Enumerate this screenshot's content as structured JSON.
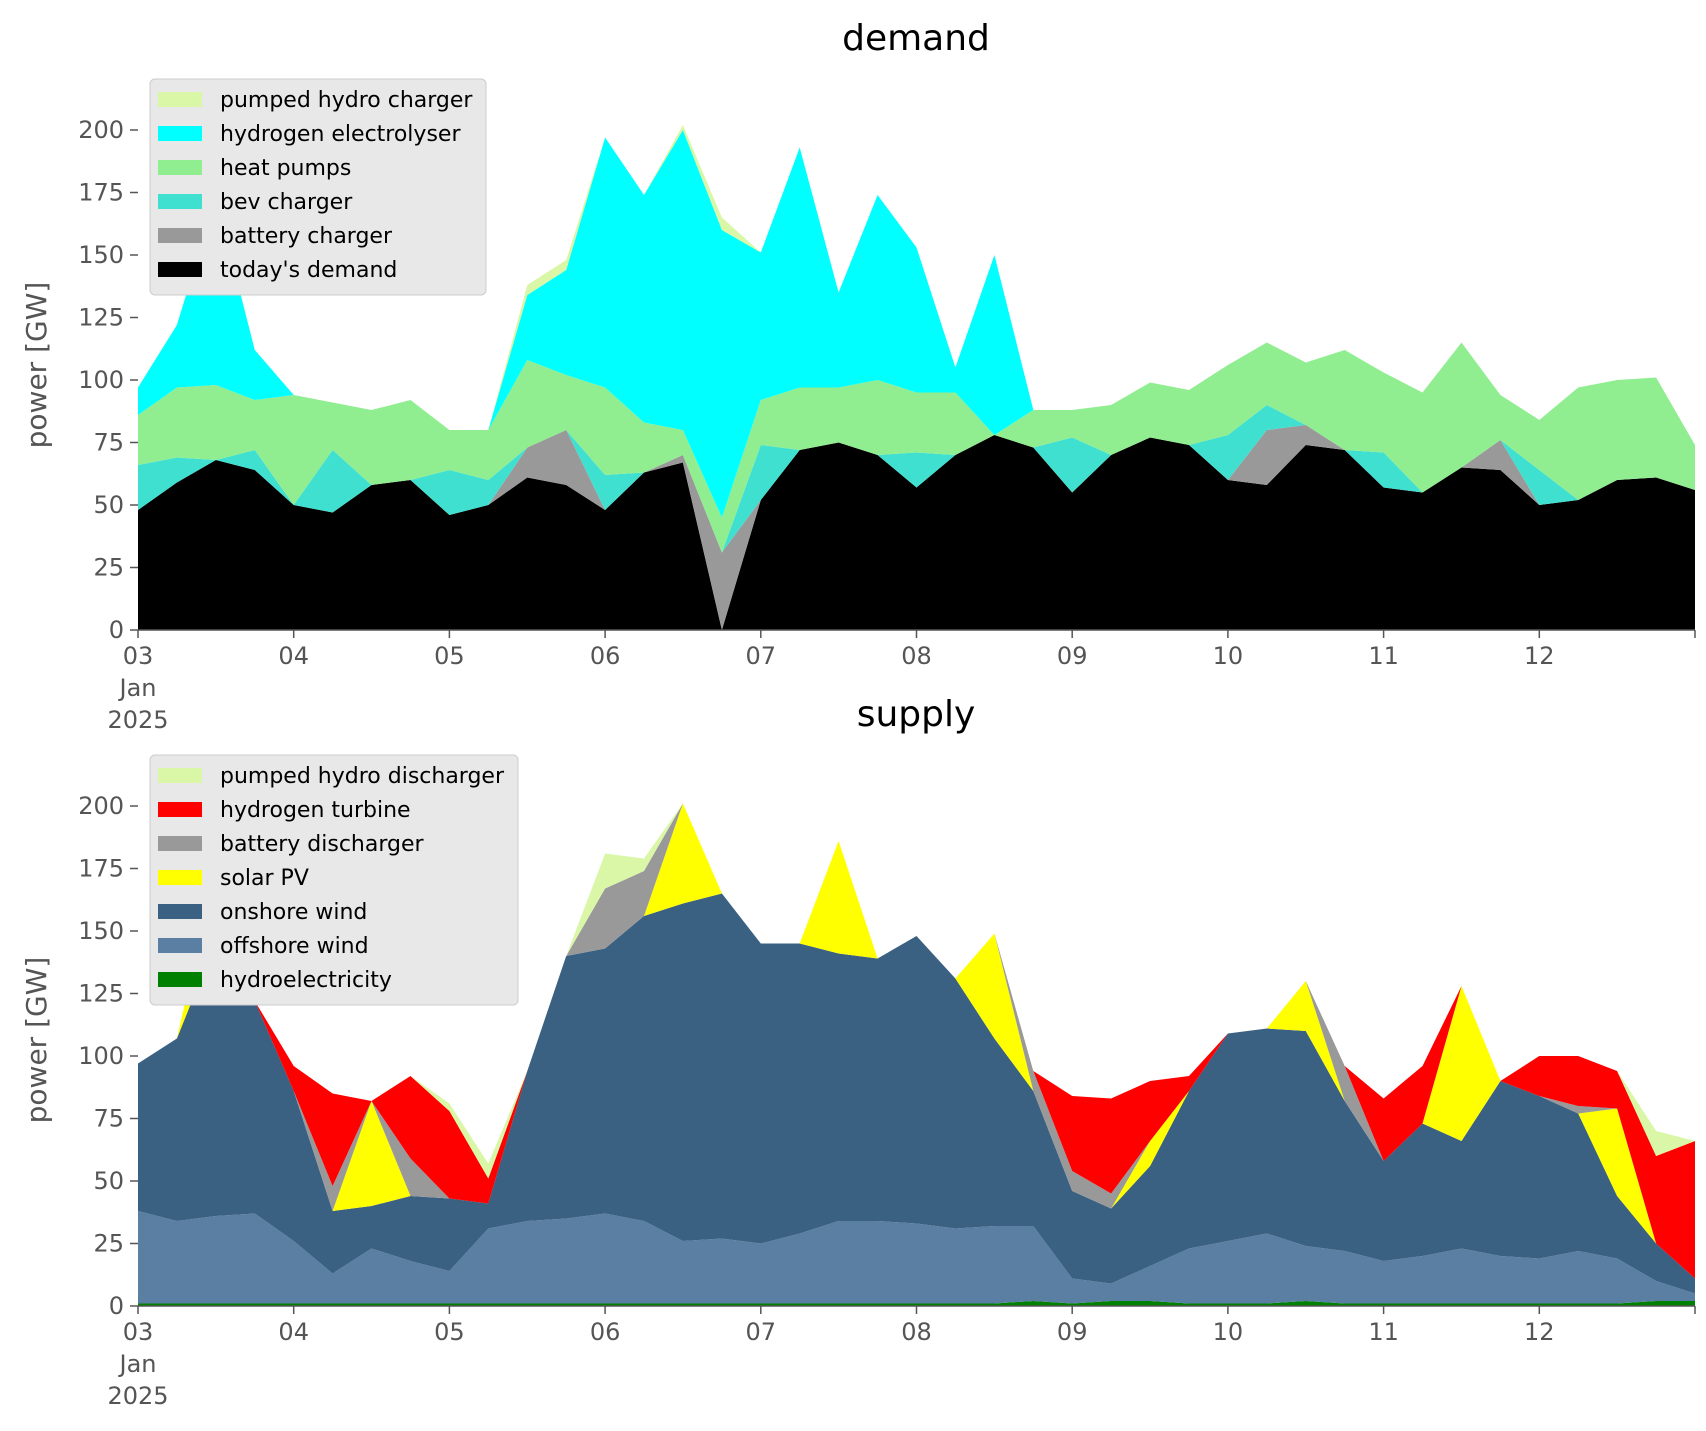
{
  "figure": {
    "x_ticks": [
      "03",
      "04",
      "05",
      "06",
      "07",
      "08",
      "09",
      "10",
      "11",
      "12"
    ],
    "x_extra_first": [
      "Jan",
      "2025"
    ]
  },
  "chart_data": [
    {
      "type": "area",
      "stacked": true,
      "title": "demand",
      "ylabel": "power [GW]",
      "xlabel": "",
      "ylim": [
        0,
        212
      ],
      "yticks": [
        0,
        25,
        50,
        75,
        100,
        125,
        150,
        175,
        200
      ],
      "x_range": [
        "2025-01-03",
        "2025-01-13"
      ],
      "grid": false,
      "legend_position": "top-left",
      "x": [
        "2025-01-03 00:00",
        "2025-01-03 06:00",
        "2025-01-03 12:00",
        "2025-01-03 18:00",
        "2025-01-04 00:00",
        "2025-01-04 06:00",
        "2025-01-04 12:00",
        "2025-01-04 18:00",
        "2025-01-05 00:00",
        "2025-01-05 06:00",
        "2025-01-05 12:00",
        "2025-01-05 18:00",
        "2025-01-06 00:00",
        "2025-01-06 06:00",
        "2025-01-06 12:00",
        "2025-01-06 18:00",
        "2025-01-07 00:00",
        "2025-01-07 06:00",
        "2025-01-07 12:00",
        "2025-01-07 18:00",
        "2025-01-08 00:00",
        "2025-01-08 06:00",
        "2025-01-08 12:00",
        "2025-01-08 18:00",
        "2025-01-09 00:00",
        "2025-01-09 06:00",
        "2025-01-09 12:00",
        "2025-01-09 18:00",
        "2025-01-10 00:00",
        "2025-01-10 06:00",
        "2025-01-10 12:00",
        "2025-01-10 18:00",
        "2025-01-11 00:00",
        "2025-01-11 06:00",
        "2025-01-11 12:00",
        "2025-01-11 18:00",
        "2025-01-12 00:00",
        "2025-01-12 06:00",
        "2025-01-12 12:00",
        "2025-01-12 18:00",
        "2025-01-13 00:00"
      ],
      "series": [
        {
          "name": "today's demand",
          "color": "#000000",
          "values": [
            48,
            59,
            68,
            64,
            50,
            47,
            58,
            60,
            46,
            50,
            61,
            58,
            48,
            63,
            67,
            0,
            52,
            72,
            75,
            70,
            57,
            70,
            78,
            73,
            55,
            70,
            77,
            74,
            60,
            58,
            74,
            72,
            57,
            55,
            65,
            64,
            50,
            52,
            60,
            61,
            56
          ]
        },
        {
          "name": "battery charger",
          "color": "#999999",
          "values": [
            0,
            0,
            0,
            0,
            0,
            0,
            0,
            0,
            0,
            0,
            12,
            22,
            0,
            0,
            3,
            31,
            0,
            0,
            0,
            0,
            0,
            0,
            0,
            0,
            0,
            0,
            0,
            0,
            0,
            22,
            8,
            0,
            0,
            0,
            0,
            12,
            0,
            0,
            0,
            0,
            0
          ]
        },
        {
          "name": "bev charger",
          "color": "#40e0d0",
          "values": [
            18,
            10,
            0,
            8,
            0,
            25,
            0,
            0,
            18,
            10,
            0,
            0,
            14,
            0,
            0,
            0,
            22,
            0,
            0,
            0,
            14,
            0,
            0,
            0,
            22,
            0,
            0,
            0,
            18,
            10,
            0,
            0,
            14,
            0,
            0,
            0,
            14,
            0,
            0,
            0,
            0
          ]
        },
        {
          "name": "heat pumps",
          "color": "#90ee90",
          "values": [
            20,
            28,
            30,
            20,
            44,
            19,
            30,
            32,
            16,
            20,
            35,
            22,
            35,
            20,
            10,
            14,
            18,
            25,
            22,
            30,
            24,
            25,
            0,
            15,
            11,
            20,
            22,
            22,
            28,
            25,
            25,
            40,
            32,
            40,
            50,
            18,
            20,
            45,
            40,
            40,
            18
          ]
        },
        {
          "name": "hydrogen electrolyser",
          "color": "#00ffff",
          "values": [
            11,
            25,
            75,
            20,
            0,
            0,
            0,
            0,
            0,
            0,
            26,
            42,
            100,
            91,
            120,
            115,
            59,
            96,
            38,
            74,
            58,
            10,
            72,
            0,
            0,
            0,
            0,
            0,
            0,
            0,
            0,
            0,
            0,
            0,
            0,
            0,
            0,
            0,
            0,
            0,
            0
          ]
        },
        {
          "name": "pumped hydro charger",
          "color": "#d9f7a6",
          "values": [
            0,
            0,
            0,
            0,
            0,
            0,
            0,
            0,
            0,
            0,
            4,
            4,
            0,
            0,
            2,
            5,
            0,
            0,
            0,
            0,
            0,
            0,
            0,
            0,
            0,
            0,
            0,
            0,
            0,
            0,
            0,
            0,
            0,
            0,
            0,
            0,
            0,
            0,
            0,
            0,
            0
          ]
        }
      ]
    },
    {
      "type": "area",
      "stacked": true,
      "title": "supply",
      "ylabel": "power [GW]",
      "xlabel": "",
      "ylim": [
        0,
        212
      ],
      "yticks": [
        0,
        25,
        50,
        75,
        100,
        125,
        150,
        175,
        200
      ],
      "x_range": [
        "2025-01-03",
        "2025-01-13"
      ],
      "grid": false,
      "legend_position": "top-left",
      "x": [
        "2025-01-03 00:00",
        "2025-01-03 06:00",
        "2025-01-03 12:00",
        "2025-01-03 18:00",
        "2025-01-04 00:00",
        "2025-01-04 06:00",
        "2025-01-04 12:00",
        "2025-01-04 18:00",
        "2025-01-05 00:00",
        "2025-01-05 06:00",
        "2025-01-05 12:00",
        "2025-01-05 18:00",
        "2025-01-06 00:00",
        "2025-01-06 06:00",
        "2025-01-06 12:00",
        "2025-01-06 18:00",
        "2025-01-07 00:00",
        "2025-01-07 06:00",
        "2025-01-07 12:00",
        "2025-01-07 18:00",
        "2025-01-08 00:00",
        "2025-01-08 06:00",
        "2025-01-08 12:00",
        "2025-01-08 18:00",
        "2025-01-09 00:00",
        "2025-01-09 06:00",
        "2025-01-09 12:00",
        "2025-01-09 18:00",
        "2025-01-10 00:00",
        "2025-01-10 06:00",
        "2025-01-10 12:00",
        "2025-01-10 18:00",
        "2025-01-11 00:00",
        "2025-01-11 06:00",
        "2025-01-11 12:00",
        "2025-01-11 18:00",
        "2025-01-12 00:00",
        "2025-01-12 06:00",
        "2025-01-12 12:00",
        "2025-01-12 18:00",
        "2025-01-13 00:00"
      ],
      "series": [
        {
          "name": "hydroelectricity",
          "color": "#008000",
          "values": [
            1,
            1,
            1,
            1,
            1,
            1,
            1,
            1,
            1,
            1,
            1,
            1,
            1,
            1,
            1,
            1,
            1,
            1,
            1,
            1,
            1,
            1,
            1,
            2,
            1,
            2,
            2,
            1,
            1,
            1,
            2,
            1,
            1,
            1,
            1,
            1,
            1,
            1,
            1,
            2,
            2
          ]
        },
        {
          "name": "offshore wind",
          "color": "#5b7fa3",
          "values": [
            37,
            33,
            35,
            36,
            25,
            12,
            22,
            17,
            13,
            30,
            33,
            34,
            36,
            33,
            25,
            26,
            24,
            28,
            33,
            33,
            32,
            30,
            31,
            30,
            10,
            7,
            14,
            22,
            25,
            28,
            22,
            21,
            17,
            19,
            22,
            19,
            18,
            21,
            18,
            8,
            3
          ]
        },
        {
          "name": "onshore wind",
          "color": "#3a6082",
          "values": [
            59,
            73,
            110,
            85,
            60,
            25,
            17,
            26,
            29,
            10,
            60,
            105,
            106,
            122,
            135,
            138,
            120,
            116,
            107,
            105,
            115,
            100,
            75,
            54,
            35,
            30,
            40,
            63,
            83,
            82,
            86,
            60,
            40,
            53,
            43,
            70,
            65,
            55,
            25,
            15,
            6
          ]
        },
        {
          "name": "solar PV",
          "color": "#ffff00",
          "values": [
            0,
            0,
            30,
            0,
            0,
            0,
            42,
            0,
            0,
            0,
            0,
            0,
            0,
            0,
            40,
            0,
            0,
            0,
            45,
            0,
            0,
            0,
            42,
            0,
            0,
            0,
            10,
            0,
            0,
            0,
            20,
            0,
            0,
            0,
            62,
            0,
            0,
            0,
            35,
            0,
            0
          ]
        },
        {
          "name": "battery discharger",
          "color": "#999999",
          "values": [
            0,
            0,
            0,
            0,
            0,
            10,
            0,
            15,
            0,
            0,
            0,
            0,
            24,
            18,
            0,
            0,
            0,
            0,
            0,
            0,
            0,
            0,
            0,
            8,
            8,
            6,
            0,
            0,
            0,
            0,
            0,
            14,
            0,
            0,
            0,
            0,
            0,
            3,
            0,
            0,
            0
          ]
        },
        {
          "name": "hydrogen turbine",
          "color": "#ff0000",
          "values": [
            0,
            0,
            0,
            0,
            10,
            37,
            0,
            33,
            35,
            10,
            0,
            0,
            0,
            0,
            0,
            0,
            0,
            0,
            0,
            0,
            0,
            0,
            0,
            0,
            30,
            38,
            24,
            6,
            0,
            0,
            0,
            0,
            25,
            23,
            0,
            0,
            16,
            20,
            15,
            35,
            55
          ]
        },
        {
          "name": "pumped hydro discharger",
          "color": "#d9f7a6",
          "values": [
            0,
            0,
            0,
            0,
            0,
            0,
            0,
            0,
            3,
            6,
            0,
            0,
            14,
            5,
            0,
            0,
            0,
            0,
            0,
            0,
            0,
            0,
            0,
            0,
            0,
            0,
            0,
            0,
            0,
            0,
            0,
            0,
            0,
            0,
            0,
            0,
            0,
            0,
            0,
            10,
            0
          ]
        }
      ]
    }
  ]
}
